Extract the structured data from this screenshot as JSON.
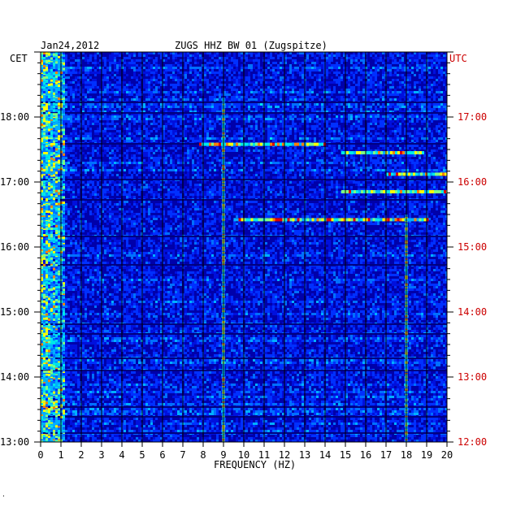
{
  "chart_data": {
    "type": "heatmap",
    "date": "Jan24,2012",
    "station": "ZUGS HHZ BW 01 (Zugspitze)",
    "left_axis_label": "CET",
    "right_axis_label": "UTC",
    "xlabel": "FREQUENCY (HZ)",
    "x_ticks": [
      "0",
      "1",
      "2",
      "3",
      "4",
      "5",
      "6",
      "7",
      "8",
      "9",
      "10",
      "11",
      "12",
      "13",
      "14",
      "15",
      "16",
      "17",
      "18",
      "19",
      "20"
    ],
    "xlim": [
      0,
      20
    ],
    "ylim_cet_hours": [
      13,
      19
    ],
    "cet_ticks": [
      "18:00",
      "17:00",
      "16:00",
      "15:00",
      "14:00",
      "13:00"
    ],
    "utc_ticks": [
      "17:00",
      "16:00",
      "15:00",
      "14:00",
      "13:00",
      "12:00"
    ],
    "grid": true,
    "colors": {
      "left_labels": "#000000",
      "right_labels": "#cc0000",
      "background": "#0000aa"
    },
    "features": [
      {
        "name": "9Hz-line",
        "freq": 9.0,
        "t_start": 13.0,
        "t_end": 18.3
      },
      {
        "name": "low-freq-noise",
        "freq_range": [
          0,
          1.2
        ],
        "t_start": 13.0,
        "t_end": 19.0
      },
      {
        "name": "tremor-1",
        "freq_range": [
          7.8,
          14.0
        ],
        "t_at": 17.58
      },
      {
        "name": "tremor-2",
        "freq_range": [
          14.8,
          18.8
        ],
        "t_at": 17.45
      },
      {
        "name": "tremor-3",
        "freq_range": [
          17.0,
          20.0
        ],
        "t_at": 17.12
      },
      {
        "name": "tremor-4",
        "freq_range": [
          14.8,
          20.0
        ],
        "t_at": 16.85
      },
      {
        "name": "tremor-5",
        "freq_range": [
          9.5,
          19.0
        ],
        "t_at": 16.42
      },
      {
        "name": "18Hz-line",
        "freq": 18.0,
        "t_start": 13.0,
        "t_end": 16.5
      }
    ]
  }
}
